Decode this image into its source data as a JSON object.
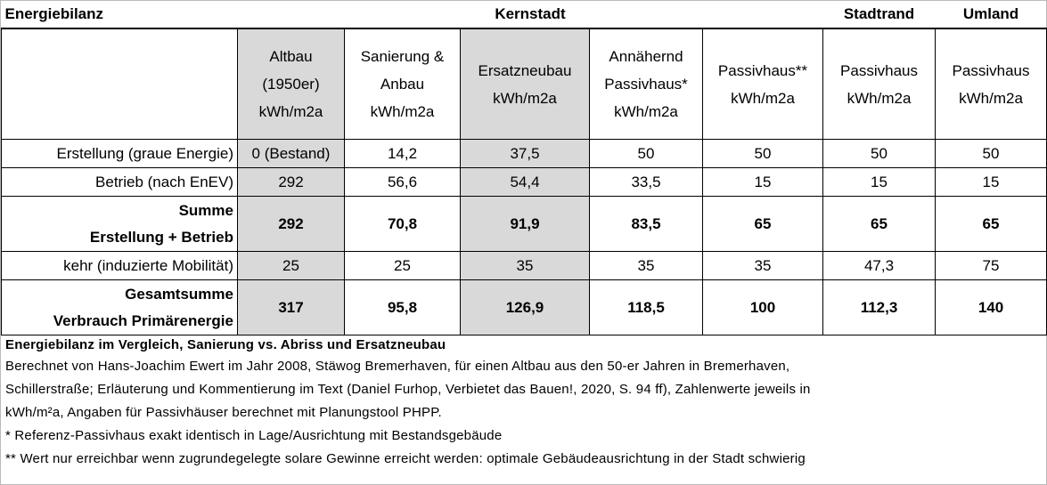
{
  "table": {
    "title_row": [
      "Energiebilanz",
      "Kernstadt",
      "Stadtrand",
      "Umland"
    ],
    "columns": [
      [
        "Altbau",
        "(1950er)",
        "kWh/m2a"
      ],
      [
        "Sanierung &",
        "Anbau",
        "kWh/m2a"
      ],
      [
        "Ersatzneubau",
        "kWh/m2a"
      ],
      [
        "Annähernd",
        "Passivhaus*",
        "kWh/m2a"
      ],
      [
        "Passivhaus**",
        "kWh/m2a"
      ],
      [
        "Passivhaus",
        "kWh/m2a"
      ],
      [
        "Passivhaus",
        "kWh/m2a"
      ]
    ],
    "rows": [
      {
        "label": [
          "Erstellung (graue Energie)"
        ],
        "values": [
          "0 (Bestand)",
          "14,2",
          "37,5",
          "50",
          "50",
          "50",
          "50"
        ]
      },
      {
        "label": [
          "Betrieb (nach EnEV)"
        ],
        "values": [
          "292",
          "56,6",
          "54,4",
          "33,5",
          "15",
          "15",
          "15"
        ]
      },
      {
        "label": [
          "Summe",
          "Erstellung + Betrieb"
        ],
        "values": [
          "292",
          "70,8",
          "91,9",
          "83,5",
          "65",
          "65",
          "65"
        ]
      },
      {
        "label": [
          "kehr (induzierte Mobilität)"
        ],
        "values": [
          "25",
          "25",
          "35",
          "35",
          "35",
          "47,3",
          "75"
        ]
      },
      {
        "label": [
          "Gesamtsumme",
          "Verbrauch Primärenergie"
        ],
        "values": [
          "317",
          "95,8",
          "126,9",
          "118,5",
          "100",
          "112,3",
          "140"
        ]
      }
    ]
  },
  "notes": {
    "title": "Energiebilanz im Vergleich, Sanierung vs. Abriss und Ersatzneubau",
    "lines": [
      "Berechnet von Hans-Joachim Ewert im Jahr 2008, Stäwog Bremerhaven, für einen Altbau aus den 50-er Jahren in Bremerhaven,",
      "Schillerstraße; Erläuterung und Kommentierung im Text (Daniel Furhop, Verbietet das Bauen!, 2020, S. 94 ff), Zahlenwerte jeweils in",
      "kWh/m²a, Angaben für Passivhäuser berechnet mit Planungstool PHPP.",
      "* Referenz-Passivhaus exakt identisch in Lage/Ausrichtung mit Bestandsgebäude",
      "** Wert nur erreichbar wenn zugrundegelegte solare Gewinne erreicht werden: optimale Gebäudeausrichtung in der Stadt schwierig"
    ]
  }
}
